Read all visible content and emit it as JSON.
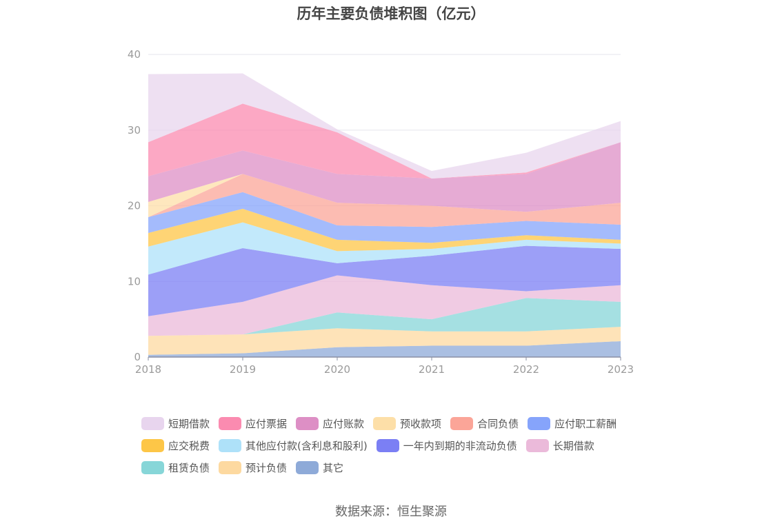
{
  "chart_data": {
    "type": "area",
    "stacked": true,
    "title": "历年主要负债堆积图（亿元）",
    "x": [
      "2018",
      "2019",
      "2020",
      "2021",
      "2022",
      "2023"
    ],
    "ylim": [
      0,
      40
    ],
    "yticks": [
      0,
      10,
      20,
      30,
      40
    ],
    "grid": true,
    "legend_position": "bottom",
    "series": [
      {
        "name": "其它",
        "color": "#8eaad8",
        "values": [
          0.3,
          0.5,
          1.3,
          1.5,
          1.5,
          2.1
        ]
      },
      {
        "name": "预计负债",
        "color": "#fdd9a0",
        "values": [
          2.5,
          2.5,
          2.5,
          1.9,
          1.9,
          1.9
        ]
      },
      {
        "name": "租赁负债",
        "color": "#87d6d8",
        "values": [
          0.0,
          0.0,
          2.1,
          1.6,
          4.4,
          3.3
        ]
      },
      {
        "name": "长期借款",
        "color": "#ebbada",
        "values": [
          2.6,
          4.3,
          4.9,
          4.5,
          0.9,
          2.2
        ]
      },
      {
        "name": "一年内到期的非流动负债",
        "color": "#7b7ff4",
        "values": [
          5.5,
          7.1,
          1.6,
          3.9,
          6.0,
          4.8
        ]
      },
      {
        "name": "其他应付款(含利息和股利)",
        "color": "#aee1f9",
        "values": [
          3.7,
          3.4,
          1.6,
          0.9,
          0.8,
          0.7
        ]
      },
      {
        "name": "应交税费",
        "color": "#fdc647",
        "values": [
          1.8,
          1.8,
          1.5,
          0.8,
          0.6,
          0.5
        ]
      },
      {
        "name": "应付职工薪酬",
        "color": "#86a4fb",
        "values": [
          2.1,
          2.2,
          1.9,
          2.1,
          1.9,
          2.0
        ]
      },
      {
        "name": "合同负债",
        "color": "#fba598",
        "values": [
          0.0,
          2.4,
          3.0,
          2.8,
          1.2,
          2.9
        ]
      },
      {
        "name": "预收款项",
        "color": "#fddfa8",
        "values": [
          2.0,
          0.0,
          0.0,
          0.0,
          0.0,
          0.0
        ]
      },
      {
        "name": "应付账款",
        "color": "#dd8fc5",
        "values": [
          3.4,
          3.1,
          3.8,
          3.6,
          5.0,
          8.0
        ]
      },
      {
        "name": "应付票据",
        "color": "#fb8bb0",
        "values": [
          4.5,
          6.2,
          5.5,
          0.0,
          0.2,
          0.0
        ]
      },
      {
        "name": "短期借款",
        "color": "#e8d5ee",
        "values": [
          9.0,
          4.0,
          0.4,
          1.0,
          2.6,
          2.8
        ]
      }
    ]
  },
  "legend_rows": [
    [
      {
        "name": "短期借款",
        "color": "#e8d5ee"
      },
      {
        "name": "应付票据",
        "color": "#fb8bb0"
      },
      {
        "name": "应付账款",
        "color": "#dd8fc5"
      },
      {
        "name": "预收款项",
        "color": "#fddfa8"
      },
      {
        "name": "合同负债",
        "color": "#fba598"
      },
      {
        "name": "应付职工薪酬",
        "color": "#86a4fb"
      }
    ],
    [
      {
        "name": "应交税费",
        "color": "#fdc647"
      },
      {
        "name": "其他应付款(含利息和股利)",
        "color": "#aee1f9"
      },
      {
        "name": "一年内到期的非流动负债",
        "color": "#7b7ff4"
      },
      {
        "name": "长期借款",
        "color": "#ebbada"
      }
    ],
    [
      {
        "name": "租赁负债",
        "color": "#87d6d8"
      },
      {
        "name": "预计负债",
        "color": "#fdd9a0"
      },
      {
        "name": "其它",
        "color": "#8eaad8"
      }
    ]
  ],
  "source": "数据来源：恒生聚源"
}
